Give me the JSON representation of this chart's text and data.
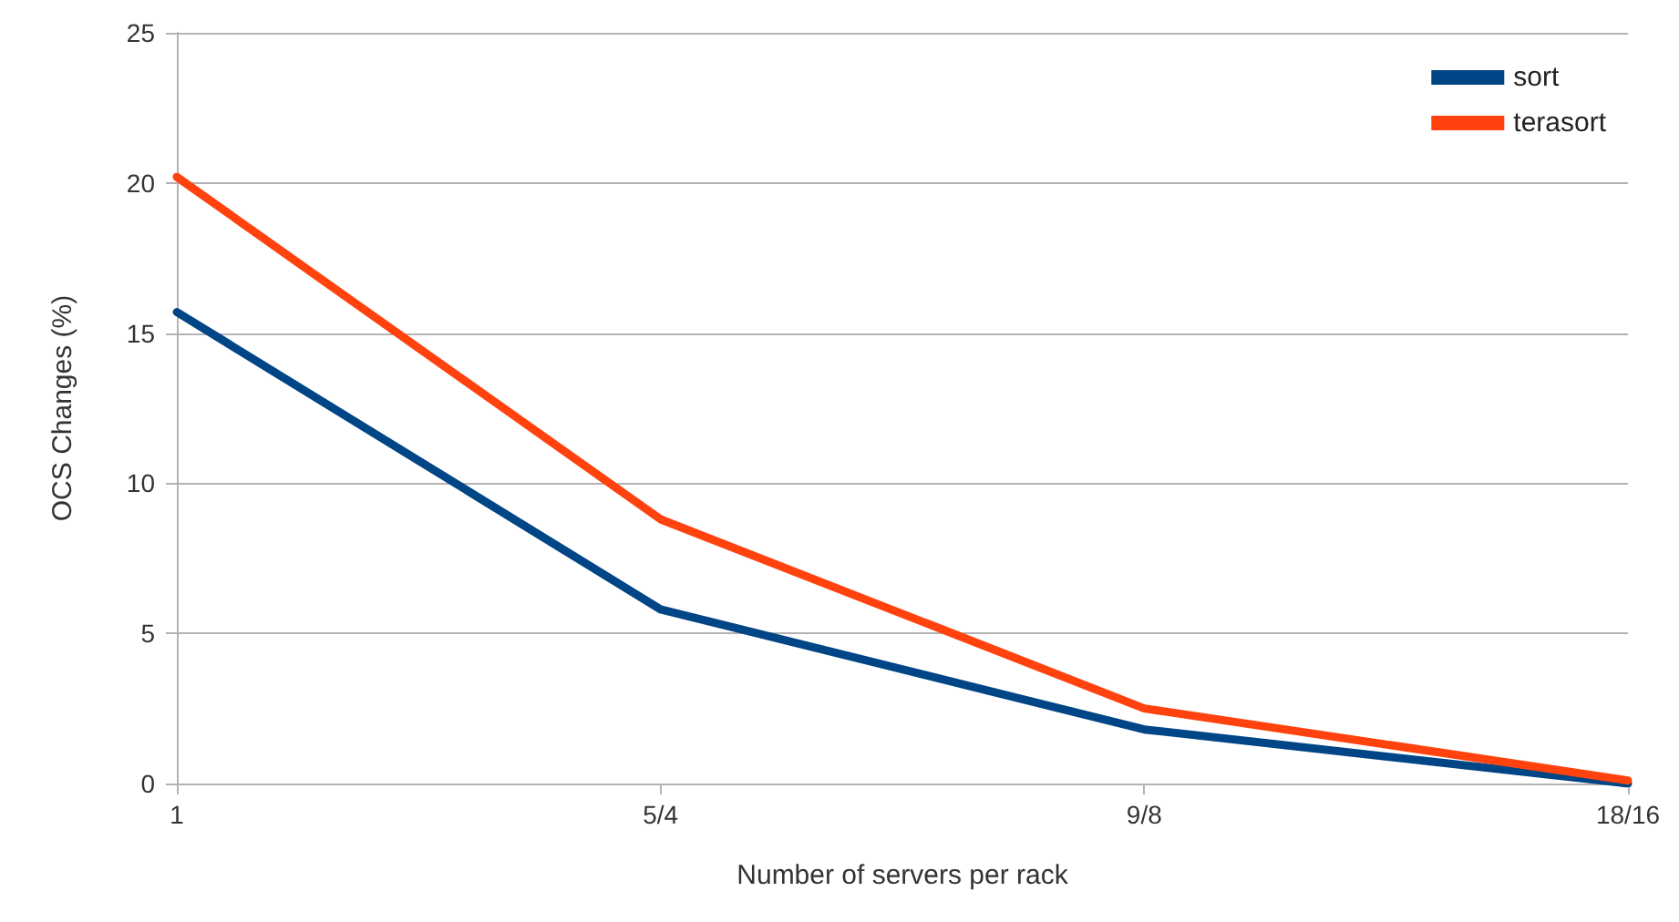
{
  "chart_data": {
    "type": "line",
    "xlabel": "Number of servers per rack",
    "ylabel": "OCS Changes (%)",
    "categories": [
      "1",
      "5/4",
      "9/8",
      "18/16"
    ],
    "series": [
      {
        "name": "sort",
        "color": "#004586",
        "values": [
          15.7,
          5.8,
          1.8,
          0
        ]
      },
      {
        "name": "terasort",
        "color": "#ff420e",
        "values": [
          20.2,
          8.8,
          2.5,
          0.1
        ]
      }
    ],
    "ylim": [
      0,
      25
    ],
    "yticks": [
      0,
      5,
      10,
      15,
      20,
      25
    ],
    "grid": "y",
    "legend": "top right",
    "marker": "none",
    "line_style": "solid"
  }
}
